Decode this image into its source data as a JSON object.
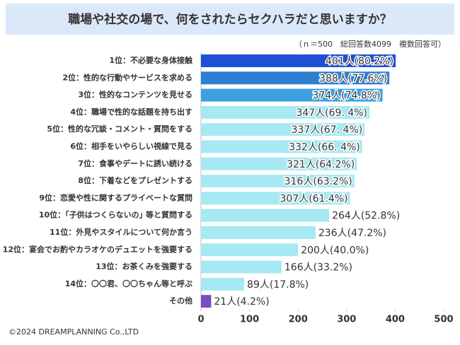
{
  "chart_data": {
    "type": "hbar",
    "title": "職場や社交の場で、何をされたらセクハラだと思いますか？",
    "subtitle": "（ｎ＝500　総回答数4099　複数回答可）",
    "footer": "©2024 DREAMPLANNING Co.,LTD",
    "categories": [
      "1位：不必要な身体接触",
      "2位：性的な行動やサービスを求める",
      "3位：性的なコンテンツを見せる",
      "4位：職場で性的な話題を持ち出す",
      "5位：性的な冗談・コメント・質問をする",
      "6位：相手をいやらしい視線で見る",
      "7位：食事やデートに誘い続ける",
      "8位：下着などをプレゼントする",
      "9位：恋愛や性に関するプライベートな質問",
      "10位：｢子供はつくらないの｣ 等と質問する",
      "11位：外見やスタイルについて何か言う",
      "12位：宴会でお酌やカラオケのデュエットを強要する",
      "13位：お茶くみを強要する",
      "14位：〇〇君、〇〇ちゃん等と呼ぶ",
      "その他"
    ],
    "values": [
      401,
      388,
      374,
      347,
      337,
      332,
      321,
      316,
      307,
      264,
      236,
      200,
      166,
      89,
      21
    ],
    "value_labels": [
      "401人(80.2%)",
      "388人(77.6%)",
      "374人(74.8%)",
      "347人(69. 4%)",
      "337人(67. 4%)",
      "332人(66. 4%)",
      "321人(64.2%)",
      "316人(63.2%)",
      "307人(61.4%)",
      "264人(52.8%)",
      "236人(47.2%)",
      "200人(40.0%)",
      "166人(33.2%)",
      "89人(17.8%)",
      "21人(4.2%)"
    ],
    "colors": [
      "#1f4fd8",
      "#2e7fd2",
      "#3aa0e2",
      "#a6e9f2",
      "#a6e9f2",
      "#a6e9f2",
      "#a6e9f2",
      "#a6e9f2",
      "#a6e9f2",
      "#a6e9f2",
      "#a6e9f2",
      "#a6e9f2",
      "#a6e9f2",
      "#a6e9f2",
      "#7a4cc2"
    ],
    "xlim": [
      0,
      500
    ],
    "xticks": [
      0,
      100,
      200,
      300,
      400,
      500
    ]
  }
}
